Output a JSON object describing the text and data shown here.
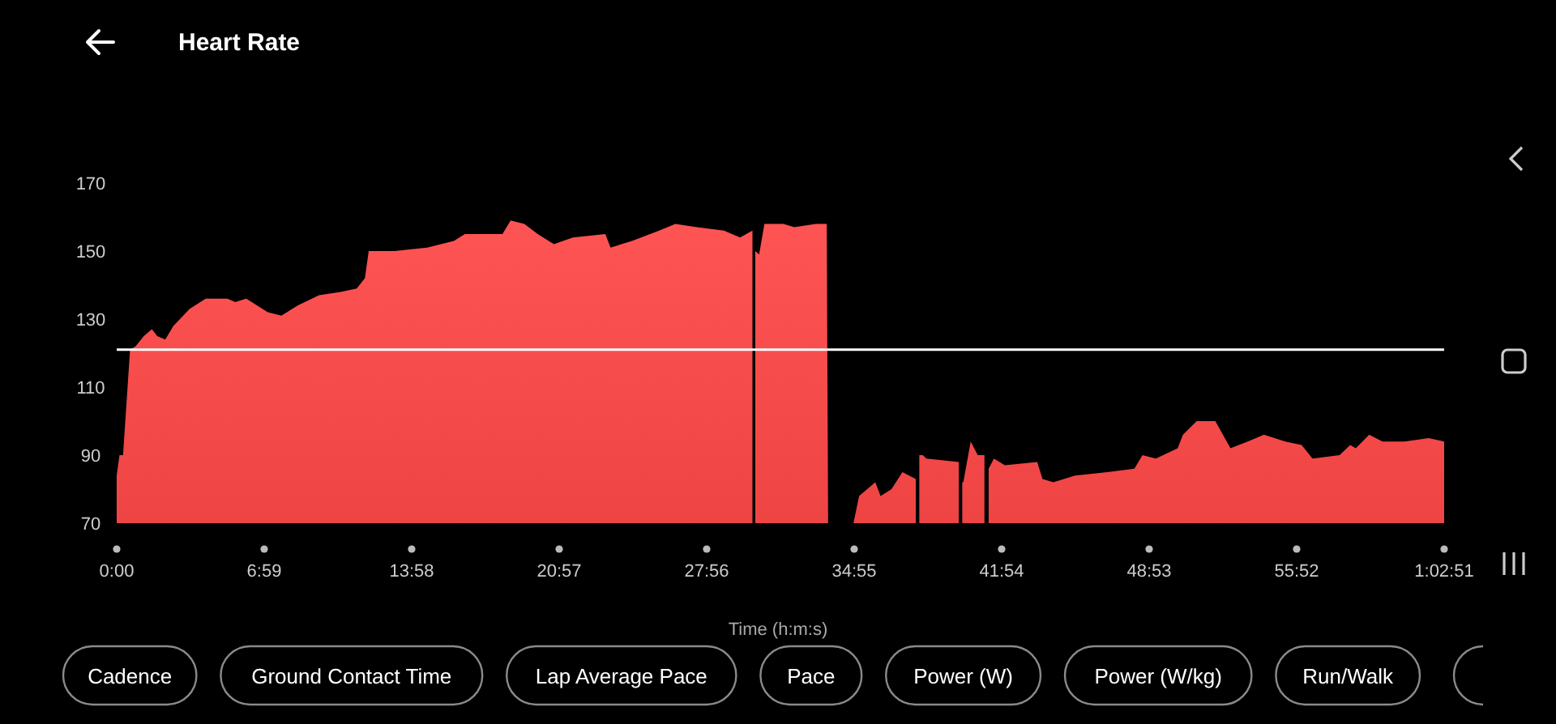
{
  "chart_data": {
    "type": "area",
    "title": "Heart Rate",
    "xlabel": "Time (h:m:s)",
    "annotations": [
      "Cadence",
      "Ground Contact Time",
      "Lap Average Pace",
      "Pace",
      "Power (W)",
      "Power (W/kg)",
      "Run/Walk"
    ],
    "xlim": [
      0,
      3771
    ],
    "ylim": [
      70,
      170
    ],
    "xticks": [
      {
        "value": 0,
        "label": "0:00"
      },
      {
        "value": 419,
        "label": "6:59"
      },
      {
        "value": 838,
        "label": "13:58"
      },
      {
        "value": 1257,
        "label": "20:57"
      },
      {
        "value": 1676,
        "label": "27:56"
      },
      {
        "value": 2095,
        "label": "34:55"
      },
      {
        "value": 2514,
        "label": "41:54"
      },
      {
        "value": 2933,
        "label": "48:53"
      },
      {
        "value": 3352,
        "label": "55:52"
      },
      {
        "value": 3771,
        "label": "1:02:51"
      }
    ],
    "yticks": [
      70,
      90,
      110,
      130,
      150,
      170
    ],
    "grid": false,
    "ref_lines": [
      {
        "axis": "y",
        "value": 121,
        "color": "#ffffff"
      }
    ],
    "x": [
      0,
      8,
      18,
      38,
      54,
      77,
      100,
      115,
      138,
      161,
      207,
      253,
      314,
      337,
      368,
      399,
      429,
      468,
      514,
      575,
      636,
      682,
      705,
      716,
      790,
      882,
      958,
      989,
      1096,
      1119,
      1158,
      1196,
      1242,
      1296,
      1388,
      1403,
      1464,
      1541,
      1587,
      1648,
      1725,
      1771,
      1806,
      1810,
      1814,
      1825,
      1840,
      1894,
      1925,
      1986,
      2017,
      2021,
      2050,
      2093,
      2109,
      2155,
      2170,
      2201,
      2232,
      2270,
      2274,
      2280,
      2290,
      2300,
      2392,
      2398,
      2402,
      2405,
      2426,
      2446,
      2465,
      2471,
      2477,
      2492,
      2523,
      2615,
      2630,
      2661,
      2722,
      2814,
      2891,
      2914,
      2952,
      3014,
      3029,
      3068,
      3121,
      3164,
      3213,
      3259,
      3320,
      3366,
      3397,
      3474,
      3504,
      3520,
      3558,
      3596,
      3658,
      3727,
      3771
    ],
    "series": [
      {
        "color": "#ee4444",
        "values": [
          84,
          90,
          90,
          121,
          122,
          125,
          127,
          125,
          124,
          128,
          133,
          136,
          136,
          135,
          136,
          134,
          132,
          131,
          134,
          137,
          138,
          139,
          142,
          150,
          150,
          151,
          153,
          155,
          155,
          159,
          158,
          155,
          152,
          154,
          155,
          151,
          153,
          156,
          158,
          157,
          156,
          154,
          156,
          null,
          150,
          149,
          158,
          158,
          157,
          158,
          158,
          70,
          null,
          70,
          78,
          82,
          78,
          80,
          85,
          83,
          null,
          90,
          90,
          89,
          88,
          null,
          82,
          82,
          94,
          90,
          90,
          null,
          86,
          89,
          87,
          88,
          83,
          82,
          84,
          85,
          86,
          90,
          89,
          92,
          96,
          100,
          100,
          92,
          94,
          96,
          94,
          93,
          89,
          90,
          93,
          92,
          96,
          94,
          94,
          95,
          94
        ]
      }
    ]
  }
}
